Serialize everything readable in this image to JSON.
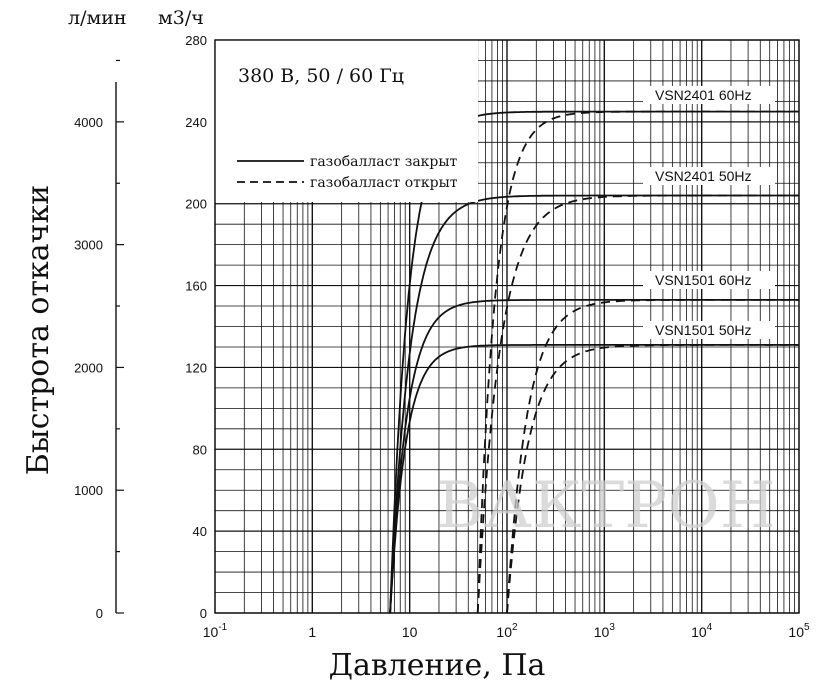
{
  "chart_data": {
    "type": "line",
    "ylabel": "Быстрота откачки",
    "xlabel": "Давление, Па",
    "y_unit_left": "л/мин",
    "y_unit_right": "м3/ч",
    "x_scale": "log",
    "xlim": [
      0.1,
      100000
    ],
    "ylim": [
      0,
      280
    ],
    "grid": true,
    "x_ticks": [
      {
        "label": "10",
        "sup": "-1",
        "value": 0.1
      },
      {
        "label": "1",
        "sup": "",
        "value": 1
      },
      {
        "label": "10",
        "sup": "",
        "value": 10
      },
      {
        "label": "10",
        "sup": "2",
        "value": 100
      },
      {
        "label": "10",
        "sup": "3",
        "value": 1000
      },
      {
        "label": "10",
        "sup": "4",
        "value": 10000
      },
      {
        "label": "10",
        "sup": "5",
        "value": 100000
      }
    ],
    "y_ticks_m3h": [
      "0",
      "40",
      "80",
      "120",
      "160",
      "200",
      "240",
      "280"
    ],
    "y_ticks_lmin": [
      {
        "label": "0",
        "value": 0
      },
      {
        "label": "1000",
        "value": 1000
      },
      {
        "label": "2000",
        "value": 2000
      },
      {
        "label": "3000",
        "value": 3000
      },
      {
        "label": "4000",
        "value": 4000
      }
    ],
    "legend_box": {
      "title": "380 В, 50 / 60 Гц",
      "entries": [
        {
          "label": "газобалласт закрыт",
          "style": "solid"
        },
        {
          "label": "газобалласт открыт",
          "style": "dashed"
        }
      ]
    },
    "curve_labels": [
      {
        "text": "VSN2401 60Hz",
        "value": 245
      },
      {
        "text": "VSN2401 50Hz",
        "value": 204
      },
      {
        "text": "VSN1501 60Hz",
        "value": 153
      },
      {
        "text": "VSN1501 50Hz",
        "value": 131
      }
    ],
    "series": [
      {
        "model": "VSN2401 60Hz",
        "style": "solid",
        "pmin": 6.3,
        "smax": 245,
        "k": 2.3
      },
      {
        "model": "VSN2401 50Hz",
        "style": "solid",
        "pmin": 6.3,
        "smax": 204,
        "k": 2.1
      },
      {
        "model": "VSN1501 60Hz",
        "style": "solid",
        "pmin": 6.3,
        "smax": 153,
        "k": 2.5
      },
      {
        "model": "VSN1501 50Hz",
        "style": "solid",
        "pmin": 6.3,
        "smax": 131,
        "k": 2.7
      },
      {
        "model": "VSN2401 60Hz",
        "style": "dashed",
        "pmin": 50,
        "smax": 245,
        "k": 2.4
      },
      {
        "model": "VSN2401 50Hz",
        "style": "dashed",
        "pmin": 50,
        "smax": 204,
        "k": 1.9
      },
      {
        "model": "VSN1501 60Hz",
        "style": "dashed",
        "pmin": 100,
        "smax": 153,
        "k": 2.1
      },
      {
        "model": "VSN1501 50Hz",
        "style": "dashed",
        "pmin": 100,
        "smax": 131,
        "k": 2.0
      }
    ],
    "watermark": "ВАКТРОН"
  }
}
